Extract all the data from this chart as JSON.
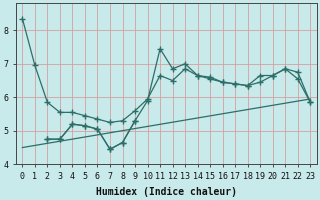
{
  "xlabel": "Humidex (Indice chaleur)",
  "bg_color": "#c8eaea",
  "line_color": "#2d6e68",
  "grid_color": "#d4a0a0",
  "xlim": [
    -0.5,
    23.5
  ],
  "ylim": [
    4.0,
    8.8
  ],
  "yticks": [
    4,
    5,
    6,
    7,
    8
  ],
  "xticks": [
    0,
    1,
    2,
    3,
    4,
    5,
    6,
    7,
    8,
    9,
    10,
    11,
    12,
    13,
    14,
    15,
    16,
    17,
    18,
    19,
    20,
    21,
    22,
    23
  ],
  "line1_x": [
    0,
    1,
    2,
    3,
    4,
    5,
    6,
    7,
    8,
    9,
    10,
    11,
    12,
    13,
    14,
    15,
    16,
    17,
    18,
    19,
    20,
    21,
    22,
    23
  ],
  "line1_y": [
    8.35,
    6.95,
    5.85,
    5.55,
    5.55,
    5.45,
    5.35,
    5.25,
    5.3,
    5.6,
    5.95,
    6.65,
    6.5,
    6.85,
    6.65,
    6.55,
    6.45,
    6.4,
    6.35,
    6.65,
    6.65,
    6.85,
    6.75,
    5.85
  ],
  "line2_x": [
    2,
    3,
    4,
    5,
    6,
    7,
    8,
    9,
    10,
    11,
    12,
    13,
    14,
    15,
    16,
    17,
    18,
    19,
    20,
    21,
    22,
    23
  ],
  "line2_y": [
    4.75,
    4.75,
    5.2,
    5.15,
    5.05,
    4.45,
    4.65,
    5.3,
    5.9,
    7.45,
    6.85,
    7.0,
    6.65,
    6.6,
    6.45,
    6.4,
    6.35,
    6.45,
    6.65,
    6.85,
    6.55,
    5.85
  ],
  "line3_x": [
    2,
    3,
    4,
    5,
    6,
    7,
    8,
    9
  ],
  "line3_y": [
    4.75,
    4.75,
    5.2,
    5.15,
    5.05,
    4.45,
    4.65,
    5.3
  ],
  "trend_x": [
    0,
    23
  ],
  "trend_y": [
    4.5,
    5.95
  ]
}
